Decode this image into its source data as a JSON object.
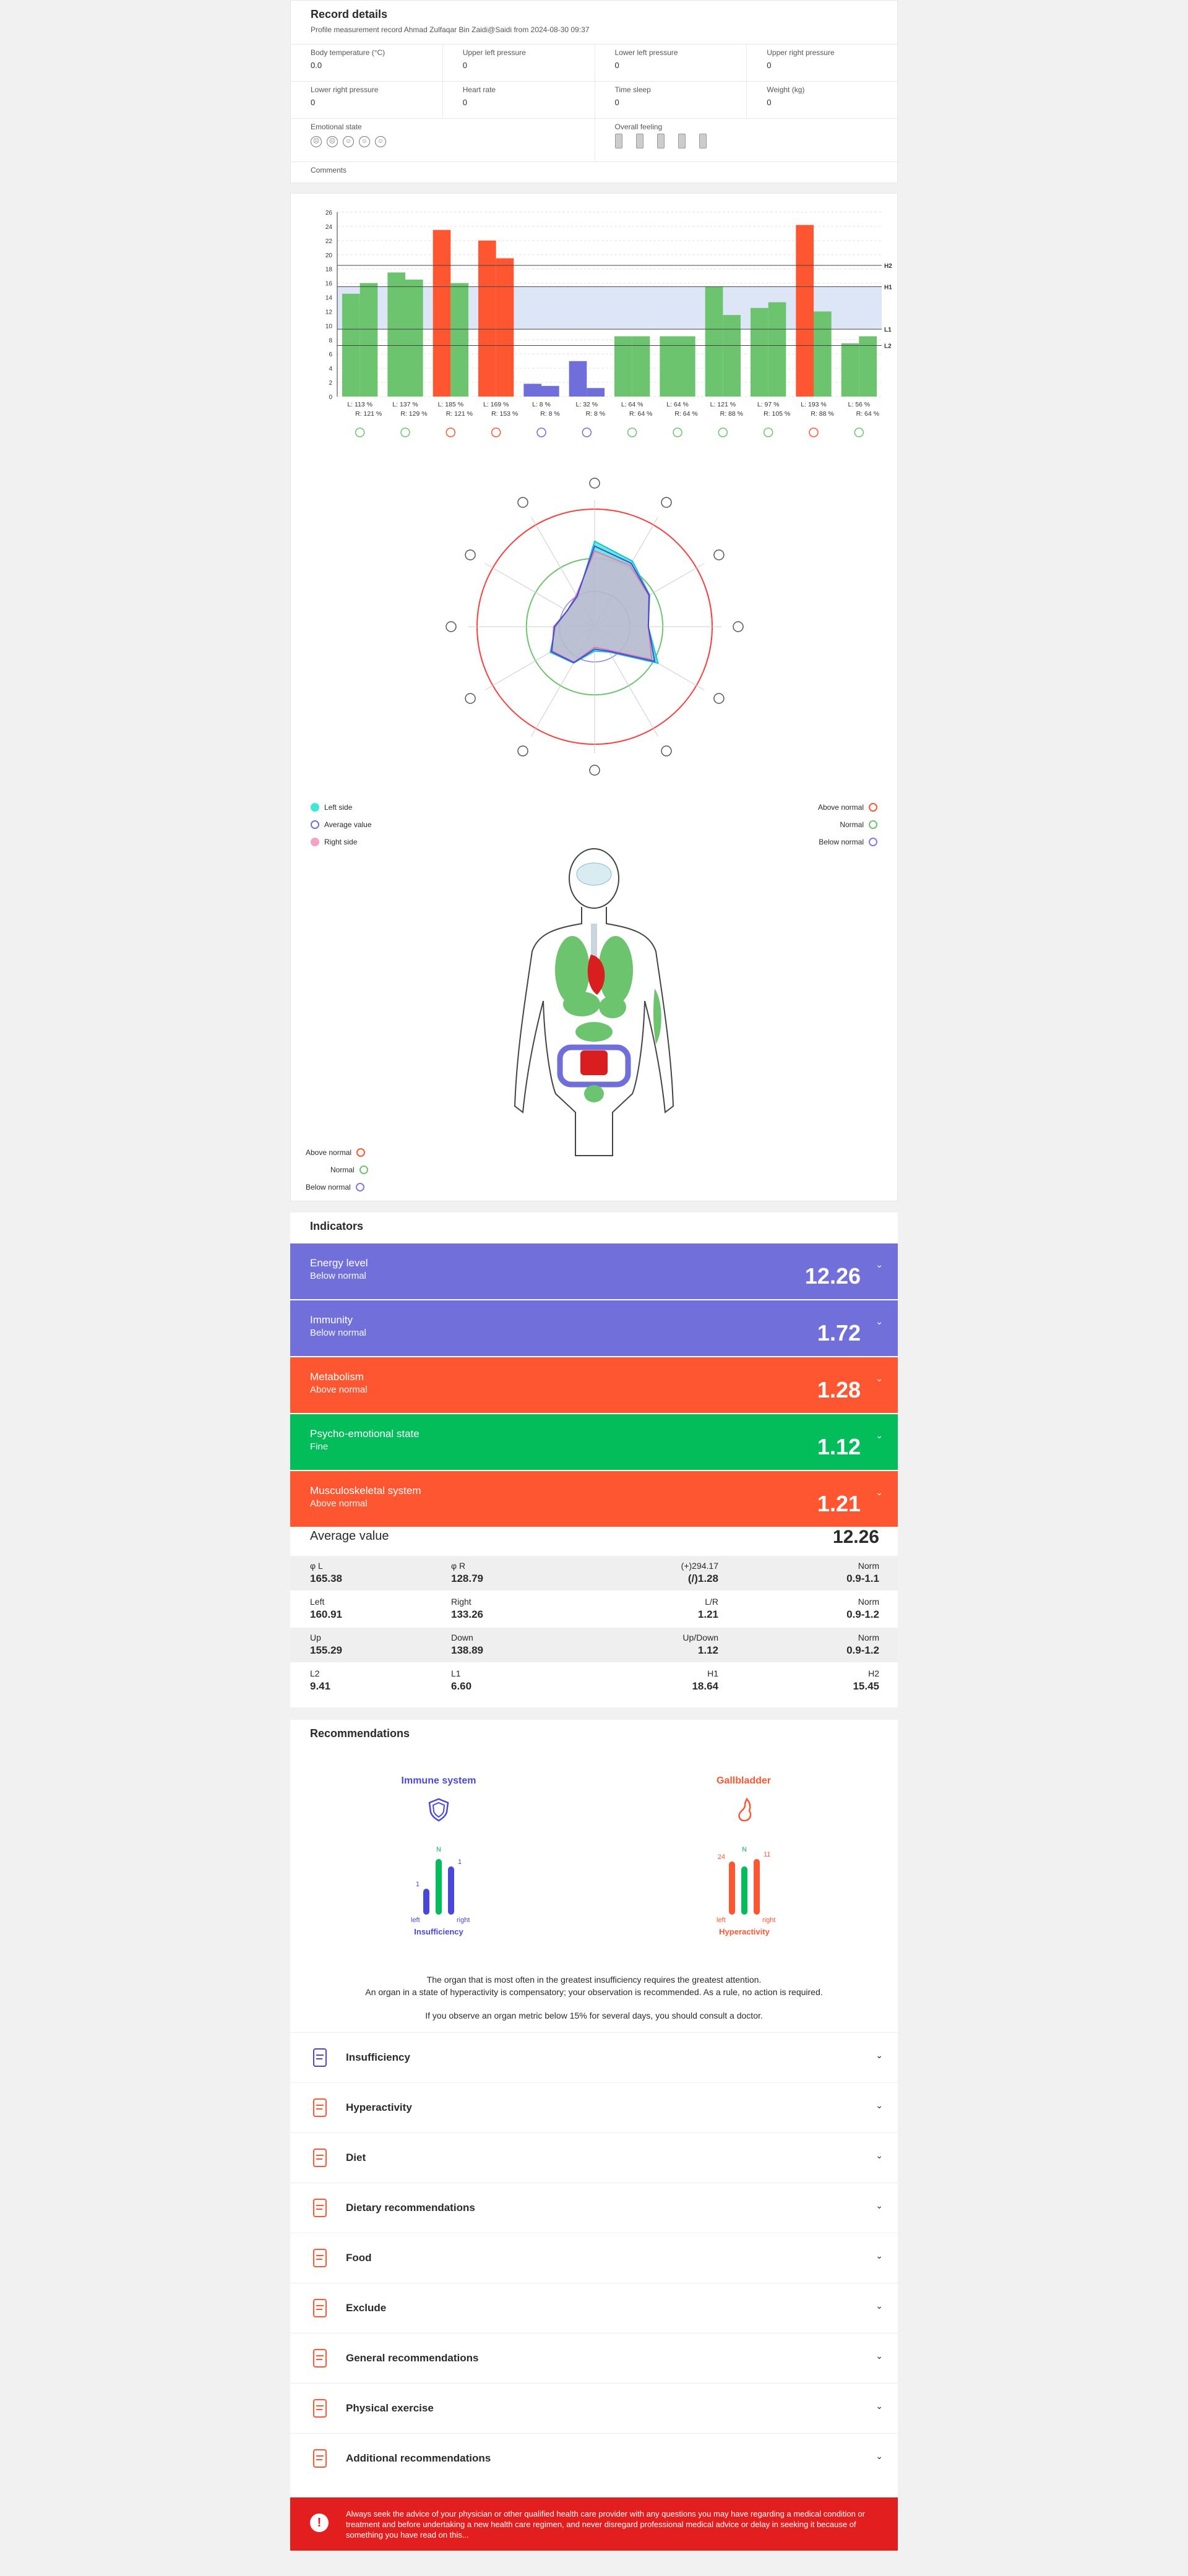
{
  "record": {
    "title": "Record details",
    "subtitle": "Profile measurement record Ahmad Zulfaqar Bin Zaidi@Saidi from 2024-08-30 09:37",
    "fields": [
      {
        "label": "Body temperature (°C)",
        "value": "0.0"
      },
      {
        "label": "Upper left pressure",
        "value": "0"
      },
      {
        "label": "Lower left pressure",
        "value": "0"
      },
      {
        "label": "Upper right pressure",
        "value": "0"
      },
      {
        "label": "Lower right pressure",
        "value": "0"
      },
      {
        "label": "Heart rate",
        "value": "0"
      },
      {
        "label": "Time sleep",
        "value": "0"
      },
      {
        "label": "Weight (kg)",
        "value": "0"
      }
    ],
    "emotional_label": "Emotional state",
    "overall_label": "Overall feeling",
    "comments_label": "Comments"
  },
  "chart_data": {
    "type": "bar",
    "ylim": [
      0,
      26
    ],
    "yticks": [
      0,
      2,
      4,
      6,
      8,
      10,
      12,
      14,
      16,
      18,
      20,
      22,
      24,
      26
    ],
    "reference_lines": [
      {
        "name": "H2",
        "value": 18.5
      },
      {
        "name": "H1",
        "value": 15.5
      },
      {
        "name": "L1",
        "value": 9.5
      },
      {
        "name": "L2",
        "value": 7.2
      }
    ],
    "normal_band": [
      9.5,
      15.5
    ],
    "groups": [
      {
        "left": 14.5,
        "right": 16,
        "color": "#6cc46e",
        "lab1": "L: 113 %",
        "lab2": "R: 121 %"
      },
      {
        "left": 17.5,
        "right": 16.5,
        "color": "#6cc46e",
        "lab1": "L: 137 %",
        "lab2": "R: 129 %"
      },
      {
        "left": 23.5,
        "right": 16,
        "color": "#ff5632",
        "color2": "#6cc46e",
        "lab1": "L: 185 %",
        "lab2": "R: 121 %"
      },
      {
        "left": 22,
        "right": 19.5,
        "color": "#ff5632",
        "lab1": "L: 169 %",
        "lab2": "R: 153 %"
      },
      {
        "left": 1.8,
        "right": 1.5,
        "color": "#6f6edb",
        "lab1": "L: 8 %",
        "lab2": "R: 8 %"
      },
      {
        "left": 5,
        "right": 1.2,
        "color": "#6f6edb",
        "lab1": "L: 32 %",
        "lab2": "R: 8 %"
      },
      {
        "left": 8.5,
        "right": 8.5,
        "color": "#6cc46e",
        "lab1": "L: 64 %",
        "lab2": "R: 64 %"
      },
      {
        "left": 8.5,
        "right": 8.5,
        "color": "#6cc46e",
        "lab1": "L: 64 %",
        "lab2": "R: 64 %"
      },
      {
        "left": 15.5,
        "right": 11.5,
        "color": "#6cc46e",
        "lab1": "L: 121 %",
        "lab2": "R: 88 %"
      },
      {
        "left": 12.5,
        "right": 13.3,
        "color": "#6cc46e",
        "lab1": "L: 97 %",
        "lab2": "R: 105 %"
      },
      {
        "left": 24.2,
        "right": 12,
        "color": "#ff5632",
        "color2": "#6cc46e",
        "lab1": "L: 193 %",
        "lab2": "R: 88 %"
      },
      {
        "left": 7.5,
        "right": 8.5,
        "color": "#6cc46e",
        "lab1": "L: 56 %",
        "lab2": "R: 64 %"
      }
    ],
    "radar_left": [
      17.5,
      15.5,
      13,
      11,
      15,
      6,
      5,
      8.6,
      10.5,
      8,
      6.5,
      7
    ],
    "radar_right": [
      15.5,
      14.5,
      12.8,
      11,
      13.5,
      5.5,
      4.2,
      8.4,
      10,
      8.4,
      6.5,
      7.5
    ],
    "radar_avg": [
      16.5,
      15,
      12.9,
      11,
      14.2,
      5.8,
      4.6,
      8.5,
      10.2,
      8.2,
      6.5,
      7.2
    ]
  },
  "radar_legend": {
    "left": "Left side",
    "average": "Average value",
    "right": "Right side",
    "above": "Above normal",
    "normal": "Normal",
    "below": "Below normal"
  },
  "body_legend": {
    "above": "Above normal",
    "normal": "Normal",
    "below": "Below normal"
  },
  "colors": {
    "above": "#ff5632",
    "normal": "#03bd5b",
    "below": "#7170db",
    "warn": "#e31e1e"
  },
  "indicators": {
    "title": "Indicators",
    "items": [
      {
        "name": "Energy level",
        "status": "Below normal",
        "value": "12.26",
        "color": "#7170db"
      },
      {
        "name": "Immunity",
        "status": "Below normal",
        "value": "1.72",
        "color": "#7170db"
      },
      {
        "name": "Metabolism",
        "status": "Above normal",
        "value": "1.28",
        "color": "#ff5632"
      },
      {
        "name": "Psycho-emotional state",
        "status": "Fine",
        "value": "1.12",
        "color": "#03bd5b"
      },
      {
        "name": "Musculoskeletal system",
        "status": "Above normal",
        "value": "1.21",
        "color": "#ff5632"
      }
    ],
    "average_label": "Average value",
    "average_value": "12.26",
    "table": [
      [
        {
          "l": "φ L",
          "v": "165.38"
        },
        {
          "l": "φ R",
          "v": "128.79"
        },
        {
          "l": "(+)294.17",
          "v": "(/)1.28"
        },
        {
          "l": "Norm",
          "v": "0.9-1.1"
        }
      ],
      [
        {
          "l": "Left",
          "v": "160.91"
        },
        {
          "l": "Right",
          "v": "133.26"
        },
        {
          "l": "L/R",
          "v": "1.21"
        },
        {
          "l": "Norm",
          "v": "0.9-1.2"
        }
      ],
      [
        {
          "l": "Up",
          "v": "155.29"
        },
        {
          "l": "Down",
          "v": "138.89"
        },
        {
          "l": "Up/Down",
          "v": "1.12"
        },
        {
          "l": "Norm",
          "v": "0.9-1.2"
        }
      ],
      [
        {
          "l": "L2",
          "v": "9.41"
        },
        {
          "l": "L1",
          "v": "6.60"
        },
        {
          "l": "H1",
          "v": "18.64"
        },
        {
          "l": "H2",
          "v": "15.45"
        }
      ]
    ]
  },
  "recommendations": {
    "title": "Recommendations",
    "organ1": {
      "name": "Immune system",
      "state": "Insufficiency",
      "n": "N",
      "l": "left",
      "r": "right",
      "v1": "1",
      "v2": "1",
      "left_level": 0.4,
      "mid_level": 1.0,
      "right_level": 0.85
    },
    "organ2": {
      "name": "Gallbladder",
      "state": "Hyperactivity",
      "n": "N",
      "l": "left",
      "r": "right",
      "v1": "24",
      "v2": "11",
      "left_level": 0.95,
      "mid_level": 0.85,
      "right_level": 1.0
    },
    "text1": "The organ that is most often in the greatest insufficiency requires the greatest attention.",
    "text2": "An organ in a state of hyperactivity is compensatory; your observation is recommended. As a rule, no action is required.",
    "text3": "If you observe an organ metric below 15% for several days, you should consult a doctor.",
    "sections": [
      "Insufficiency",
      "Hyperactivity",
      "Diet",
      "Dietary recommendations",
      "Food",
      "Exclude",
      "General recommendations",
      "Physical exercise",
      "Additional recommendations"
    ]
  },
  "warning": "Always seek the advice of your physician or other qualified health care provider with any questions you may have regarding a medical condition or treatment and before undertaking a new health care regimen, and never disregard professional medical advice or delay in seeking it because of something you have read on this..."
}
